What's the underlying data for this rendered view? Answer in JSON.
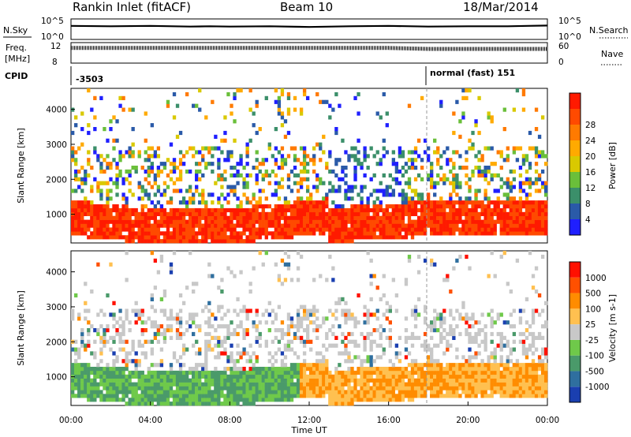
{
  "title": {
    "radar": "Rankin Inlet (fitACF)",
    "beam": "Beam 10",
    "date": "18/Mar/2014"
  },
  "colors": {
    "power_scale": [
      "#1f1fff",
      "#2a5aa8",
      "#3b8f6a",
      "#6abf3a",
      "#d9c900",
      "#ffaa00",
      "#ff7a00",
      "#ff4a00",
      "#ff1a00"
    ],
    "velocity_scale": [
      "#1a3fb0",
      "#2f6f9f",
      "#4a9a6a",
      "#6fc94a",
      "#c8c8c8",
      "#ffc050",
      "#ff8c00",
      "#ff5000",
      "#ff1000"
    ]
  },
  "chart_data": [
    {
      "type": "line",
      "panel": "N.Sky / N.Search",
      "left_label": "N.Sky",
      "right_label": "N.Search",
      "left_ticks": [
        "10^5",
        "10^0"
      ],
      "right_ticks": [
        "10^5",
        "10^0"
      ],
      "series": [
        {
          "name": "N.Sky",
          "x_hours": [
            0,
            2,
            4,
            6,
            7,
            8,
            10,
            12,
            14,
            16,
            18,
            20,
            22,
            23,
            24
          ],
          "values_log": [
            3.9,
            3.8,
            3.9,
            3.7,
            3.8,
            3.7,
            3.8,
            3.6,
            3.8,
            3.9,
            3.7,
            3.8,
            3.8,
            3.9,
            4.0
          ]
        }
      ]
    },
    {
      "type": "line",
      "panel": "Freq / Nave",
      "left_label": "Freq.",
      "left_unit": "[MHz]",
      "right_label": "Nave",
      "left_ticks": [
        "12",
        "8"
      ],
      "right_ticks": [
        "60",
        "0"
      ],
      "series": [
        {
          "name": "Freq.",
          "x_hours": [
            0,
            4,
            8,
            12,
            16,
            18,
            20,
            24
          ],
          "values": [
            11.2,
            11.2,
            11.2,
            11.2,
            11.2,
            11.0,
            11.0,
            11.0
          ]
        }
      ]
    },
    {
      "type": "table",
      "panel": "CPID",
      "label": "CPID",
      "entries": [
        {
          "start_hour": 0,
          "text": "-3503"
        },
        {
          "start_hour": 18,
          "text": "normal (fast) 151"
        }
      ]
    },
    {
      "type": "heatmap",
      "panel": "Power",
      "ylabel": "Slant Range [km]",
      "ylim": [
        180,
        4600
      ],
      "yticks": [
        1000,
        2000,
        3000,
        4000
      ],
      "colorbar_label": "Power [dB]",
      "colorbar_ticks": [
        "4",
        "8",
        "12",
        "16",
        "20",
        "24",
        "28"
      ],
      "colorbar_range": [
        0,
        30
      ]
    },
    {
      "type": "heatmap",
      "panel": "Velocity",
      "ylabel": "Slant Range [km]",
      "xlabel": "Time UT",
      "ylim": [
        180,
        4600
      ],
      "yticks": [
        1000,
        2000,
        3000,
        4000
      ],
      "xlim": [
        0,
        24
      ],
      "xticks": [
        "00:00",
        "04:00",
        "08:00",
        "12:00",
        "16:00",
        "20:00",
        "00:00"
      ],
      "colorbar_label": "Velocity [m s-1]",
      "colorbar_ticks": [
        "1000",
        "500",
        "100",
        "25",
        "-25",
        "-100",
        "-500",
        "-1000"
      ]
    }
  ]
}
